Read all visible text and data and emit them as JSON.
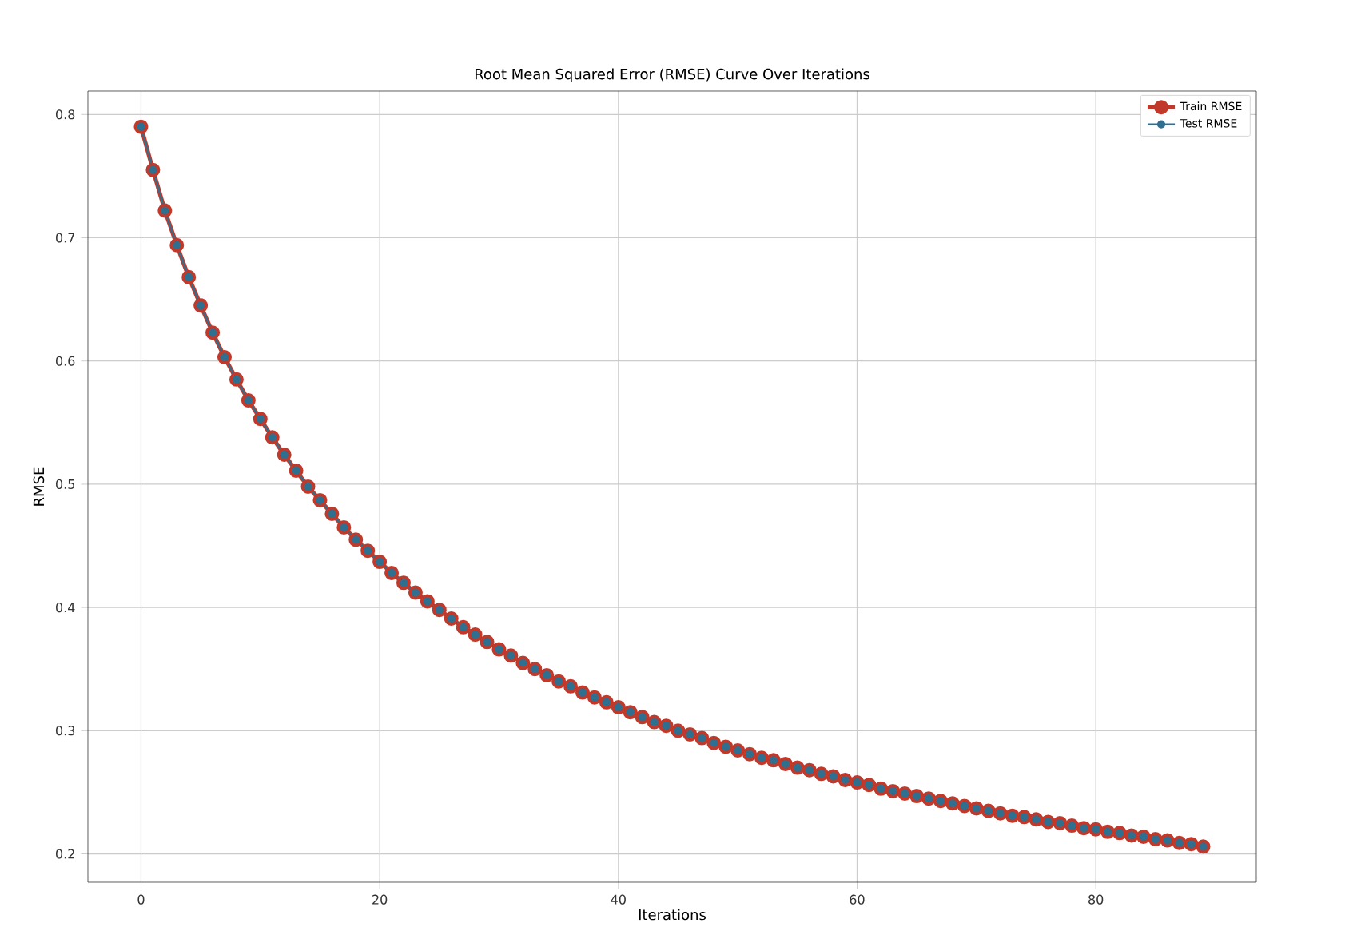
{
  "chart_data": {
    "type": "line",
    "title": "Root Mean Squared Error (RMSE) Curve Over Iterations",
    "xlabel": "Iterations",
    "ylabel": "RMSE",
    "x": [
      0,
      1,
      2,
      3,
      4,
      5,
      6,
      7,
      8,
      9,
      10,
      11,
      12,
      13,
      14,
      15,
      16,
      17,
      18,
      19,
      20,
      21,
      22,
      23,
      24,
      25,
      26,
      27,
      28,
      29,
      30,
      31,
      32,
      33,
      34,
      35,
      36,
      37,
      38,
      39,
      40,
      41,
      42,
      43,
      44,
      45,
      46,
      47,
      48,
      49,
      50,
      51,
      52,
      53,
      54,
      55,
      56,
      57,
      58,
      59,
      60,
      61,
      62,
      63,
      64,
      65,
      66,
      67,
      68,
      69,
      70,
      71,
      72,
      73,
      74,
      75,
      76,
      77,
      78,
      79,
      80,
      81,
      82,
      83,
      84,
      85,
      86,
      87,
      88,
      89
    ],
    "series": [
      {
        "name": "Train RMSE",
        "color": "#c0392b",
        "values": [
          0.79,
          0.755,
          0.722,
          0.694,
          0.668,
          0.645,
          0.623,
          0.603,
          0.585,
          0.568,
          0.553,
          0.538,
          0.524,
          0.511,
          0.498,
          0.487,
          0.476,
          0.465,
          0.455,
          0.446,
          0.437,
          0.428,
          0.42,
          0.412,
          0.405,
          0.398,
          0.391,
          0.384,
          0.378,
          0.372,
          0.366,
          0.361,
          0.355,
          0.35,
          0.345,
          0.34,
          0.336,
          0.331,
          0.327,
          0.323,
          0.319,
          0.315,
          0.311,
          0.307,
          0.304,
          0.3,
          0.297,
          0.294,
          0.29,
          0.287,
          0.284,
          0.281,
          0.278,
          0.276,
          0.273,
          0.27,
          0.268,
          0.265,
          0.263,
          0.26,
          0.258,
          0.256,
          0.253,
          0.251,
          0.249,
          0.247,
          0.245,
          0.243,
          0.241,
          0.239,
          0.237,
          0.235,
          0.233,
          0.231,
          0.23,
          0.228,
          0.226,
          0.225,
          0.223,
          0.221,
          0.22,
          0.218,
          0.217,
          0.215,
          0.214,
          0.212,
          0.211,
          0.209,
          0.208,
          0.206
        ]
      },
      {
        "name": "Test RMSE",
        "color": "#2f6f8f",
        "values": [
          0.79,
          0.755,
          0.722,
          0.694,
          0.668,
          0.645,
          0.623,
          0.603,
          0.585,
          0.568,
          0.553,
          0.538,
          0.524,
          0.511,
          0.498,
          0.487,
          0.476,
          0.465,
          0.455,
          0.446,
          0.437,
          0.428,
          0.42,
          0.412,
          0.405,
          0.398,
          0.391,
          0.384,
          0.378,
          0.372,
          0.366,
          0.361,
          0.355,
          0.35,
          0.345,
          0.34,
          0.336,
          0.331,
          0.327,
          0.323,
          0.319,
          0.315,
          0.311,
          0.307,
          0.304,
          0.3,
          0.297,
          0.294,
          0.29,
          0.287,
          0.284,
          0.281,
          0.278,
          0.276,
          0.273,
          0.27,
          0.268,
          0.265,
          0.263,
          0.26,
          0.258,
          0.256,
          0.253,
          0.251,
          0.249,
          0.247,
          0.245,
          0.243,
          0.241,
          0.239,
          0.237,
          0.235,
          0.233,
          0.231,
          0.23,
          0.228,
          0.226,
          0.225,
          0.223,
          0.221,
          0.22,
          0.218,
          0.217,
          0.215,
          0.214,
          0.212,
          0.211,
          0.209,
          0.208,
          0.206
        ]
      }
    ],
    "xlim": [
      -4.45,
      93.45
    ],
    "ylim": [
      0.177,
      0.819
    ],
    "xticks": [
      0,
      20,
      40,
      60,
      80
    ],
    "yticks": [
      0.2,
      0.3,
      0.4,
      0.5,
      0.6,
      0.7,
      0.8
    ],
    "grid": true,
    "legend": "top right",
    "marker": "circle",
    "line_style": "solid"
  }
}
